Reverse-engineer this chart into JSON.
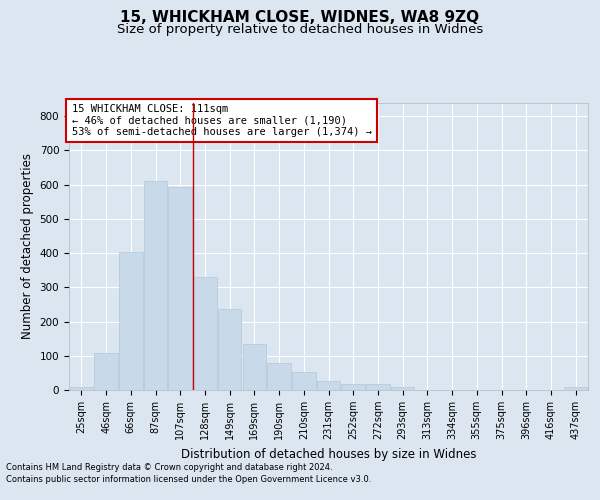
{
  "title": "15, WHICKHAM CLOSE, WIDNES, WA8 9ZQ",
  "subtitle": "Size of property relative to detached houses in Widnes",
  "xlabel": "Distribution of detached houses by size in Widnes",
  "ylabel": "Number of detached properties",
  "footer_line1": "Contains HM Land Registry data © Crown copyright and database right 2024.",
  "footer_line2": "Contains public sector information licensed under the Open Government Licence v3.0.",
  "bar_labels": [
    "25sqm",
    "46sqm",
    "66sqm",
    "87sqm",
    "107sqm",
    "128sqm",
    "149sqm",
    "169sqm",
    "190sqm",
    "210sqm",
    "231sqm",
    "252sqm",
    "272sqm",
    "293sqm",
    "313sqm",
    "334sqm",
    "355sqm",
    "375sqm",
    "396sqm",
    "416sqm",
    "437sqm"
  ],
  "bar_values": [
    8,
    107,
    402,
    612,
    592,
    330,
    237,
    133,
    78,
    52,
    25,
    17,
    17,
    10,
    0,
    0,
    0,
    0,
    0,
    0,
    8
  ],
  "bar_color": "#c8daea",
  "bar_edgecolor": "#b0c8dc",
  "vline_x": 4.5,
  "vline_color": "#cc0000",
  "annotation_text": "15 WHICKHAM CLOSE: 111sqm\n← 46% of detached houses are smaller (1,190)\n53% of semi-detached houses are larger (1,374) →",
  "annotation_box_color": "#ffffff",
  "annotation_box_edgecolor": "#cc0000",
  "ylim": [
    0,
    840
  ],
  "yticks": [
    0,
    100,
    200,
    300,
    400,
    500,
    600,
    700,
    800
  ],
  "background_color": "#dce6f0",
  "axes_bg_color": "#dce6f0",
  "grid_color": "#ffffff",
  "title_fontsize": 11,
  "subtitle_fontsize": 9.5,
  "tick_fontsize": 7,
  "ylabel_fontsize": 8.5,
  "xlabel_fontsize": 8.5,
  "footer_fontsize": 6.0
}
